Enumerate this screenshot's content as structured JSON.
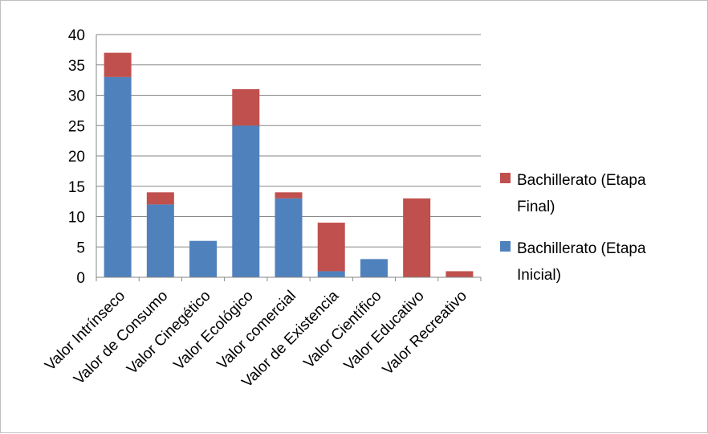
{
  "chart_data": {
    "type": "bar",
    "stacked": true,
    "categories": [
      "Valor Intrínseco",
      "Valor de Consumo",
      "Valor Cinegético",
      "Valor Ecológico",
      "Valor comercial",
      "Valor de Existencia",
      "Valor Científico",
      "Valor Educativo",
      "Valor Recreativo"
    ],
    "series": [
      {
        "name": "Bachillerato (Etapa Inicial)",
        "color": "#4f81bd",
        "values": [
          33,
          12,
          6,
          25,
          13,
          1,
          3,
          0,
          0
        ]
      },
      {
        "name": "Bachillerato (Etapa Final)",
        "color": "#c0504d",
        "values": [
          4,
          2,
          0,
          6,
          1,
          8,
          0,
          13,
          1
        ]
      }
    ],
    "ylim": [
      0,
      40
    ],
    "yticks": [
      0,
      5,
      10,
      15,
      20,
      25,
      30,
      35,
      40
    ],
    "title": "",
    "xlabel": "",
    "ylabel": "",
    "grid": "horizontal",
    "legend": {
      "position": "right",
      "order": [
        "Bachillerato (Etapa Final)",
        "Bachillerato (Etapa Inicial)"
      ],
      "entries": {
        "final": [
          "Bachillerato (Etapa",
          "Final)"
        ],
        "inicial": [
          "Bachillerato (Etapa",
          "Inicial)"
        ]
      }
    }
  }
}
